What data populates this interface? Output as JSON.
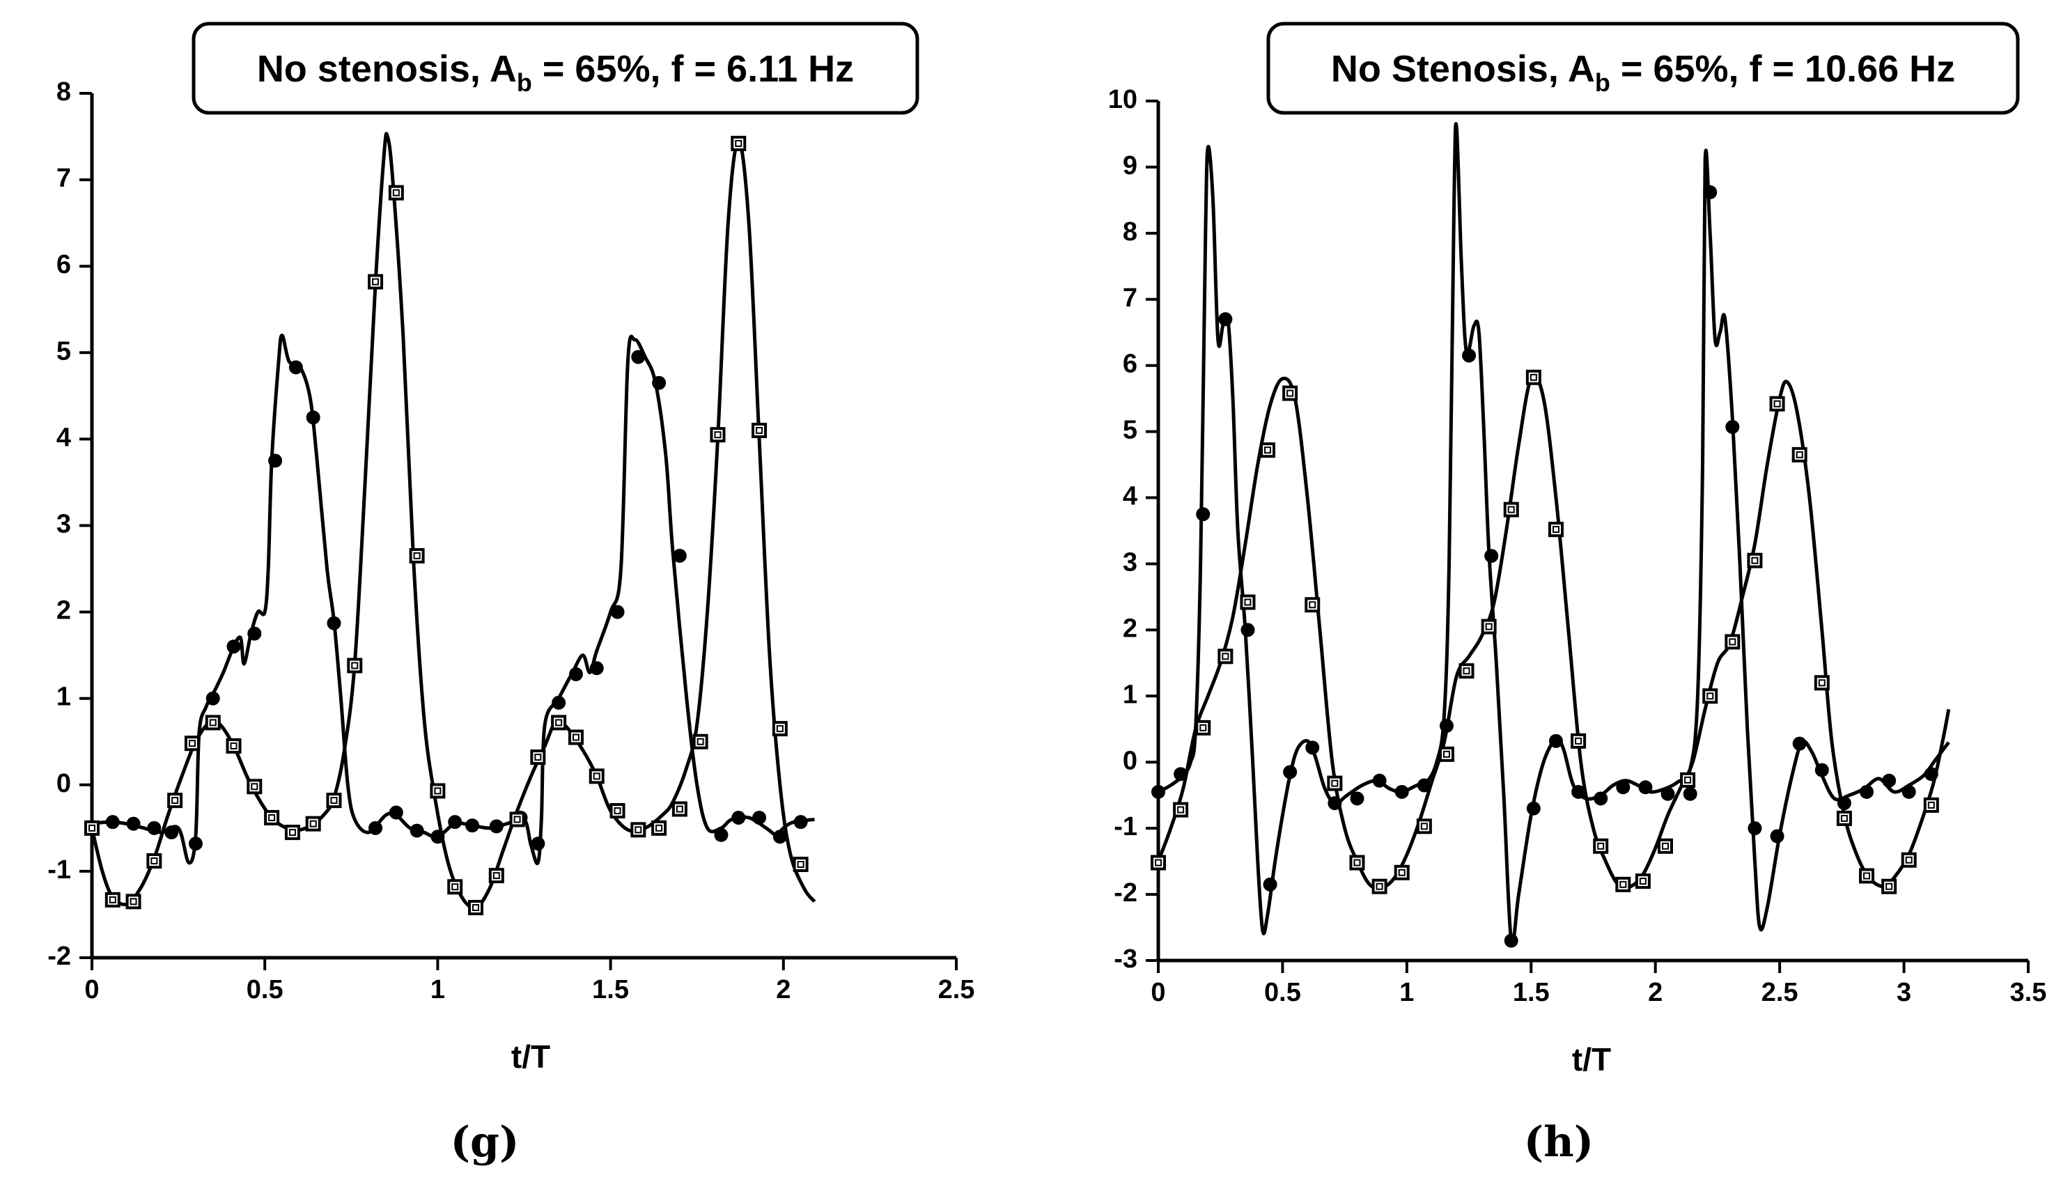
{
  "chart_data": [
    {
      "type": "line",
      "title": [
        "No stenosis, A",
        "b",
        " = 65%, f = 6.11 Hz"
      ],
      "xlabel": "t/T",
      "caption": "(g)",
      "xlim": [
        0,
        2.5
      ],
      "ylim": [
        -2,
        8
      ],
      "xticks": [
        0,
        0.5,
        1,
        1.5,
        2,
        2.5
      ],
      "yticks": [
        -2,
        -1,
        0,
        1,
        2,
        3,
        4,
        5,
        6,
        7,
        8
      ],
      "series": [
        {
          "color": "#000000",
          "marker": "circle",
          "x": [
            0,
            0.05,
            0.1,
            0.15,
            0.2,
            0.25,
            0.28,
            0.3,
            0.31,
            0.33,
            0.35,
            0.38,
            0.41,
            0.43,
            0.44,
            0.46,
            0.48,
            0.5,
            0.51,
            0.52,
            0.54,
            0.55,
            0.57,
            0.6,
            0.63,
            0.65,
            0.68,
            0.7,
            0.72,
            0.74,
            0.76,
            0.8,
            0.85,
            0.88,
            0.92,
            0.96,
            1.0,
            1.05,
            1.1,
            1.15,
            1.2,
            1.25,
            1.27,
            1.29,
            1.3,
            1.31,
            1.35,
            1.39,
            1.42,
            1.44,
            1.46,
            1.5,
            1.53,
            1.55,
            1.57,
            1.6,
            1.63,
            1.66,
            1.68,
            1.72,
            1.75,
            1.78,
            1.82,
            1.85,
            1.9,
            1.95,
            1.98,
            2.0,
            2.03,
            2.09
          ],
          "values": [
            -0.45,
            -0.43,
            -0.45,
            -0.5,
            -0.55,
            -0.5,
            -0.9,
            -0.6,
            0.6,
            0.9,
            1.05,
            1.3,
            1.6,
            1.7,
            1.4,
            1.75,
            2.0,
            2.0,
            2.5,
            3.75,
            4.9,
            5.2,
            4.9,
            4.85,
            4.5,
            3.8,
            2.5,
            1.9,
            1.0,
            0.0,
            -0.4,
            -0.55,
            -0.35,
            -0.35,
            -0.5,
            -0.55,
            -0.6,
            -0.45,
            -0.47,
            -0.5,
            -0.45,
            -0.4,
            -0.7,
            -0.9,
            -0.4,
            0.7,
            1.0,
            1.3,
            1.5,
            1.3,
            1.55,
            2.0,
            2.5,
            4.9,
            5.15,
            4.95,
            4.65,
            3.8,
            2.7,
            1.0,
            0.0,
            -0.5,
            -0.5,
            -0.4,
            -0.38,
            -0.5,
            -0.58,
            -0.5,
            -0.43,
            -0.4
          ],
          "markers": {
            "x": [
              0.06,
              0.12,
              0.18,
              0.23,
              0.3,
              0.35,
              0.41,
              0.47,
              0.53,
              0.59,
              0.64,
              0.7,
              0.82,
              0.88,
              0.94,
              1.0,
              1.05,
              1.1,
              1.17,
              1.24,
              1.29,
              1.35,
              1.4,
              1.46,
              1.52,
              1.58,
              1.64,
              1.7,
              1.82,
              1.87,
              1.93,
              1.99,
              2.05
            ],
            "values": [
              -0.43,
              -0.45,
              -0.5,
              -0.55,
              -0.68,
              1.0,
              1.6,
              1.75,
              3.75,
              4.83,
              4.25,
              1.87,
              -0.5,
              -0.32,
              -0.53,
              -0.6,
              -0.43,
              -0.47,
              -0.48,
              -0.38,
              -0.68,
              0.95,
              1.28,
              1.35,
              2.0,
              4.95,
              4.65,
              2.65,
              -0.58,
              -0.38,
              -0.38,
              -0.6,
              -0.43
            ]
          }
        },
        {
          "color": "#000000",
          "marker": "square",
          "x": [
            0,
            0.03,
            0.06,
            0.1,
            0.14,
            0.18,
            0.22,
            0.26,
            0.3,
            0.34,
            0.37,
            0.41,
            0.46,
            0.52,
            0.58,
            0.63,
            0.67,
            0.7,
            0.73,
            0.76,
            0.79,
            0.82,
            0.845,
            0.855,
            0.87,
            0.9,
            0.93,
            0.96,
            0.99,
            1.03,
            1.07,
            1.11,
            1.15,
            1.19,
            1.23,
            1.27,
            1.31,
            1.34,
            1.37,
            1.42,
            1.46,
            1.5,
            1.55,
            1.6,
            1.65,
            1.68,
            1.72,
            1.75,
            1.78,
            1.81,
            1.84,
            1.87,
            1.9,
            1.93,
            1.96,
            1.99,
            2.02,
            2.06,
            2.09
          ],
          "values": [
            -0.5,
            -1.0,
            -1.3,
            -1.38,
            -1.2,
            -0.85,
            -0.35,
            0.1,
            0.5,
            0.72,
            0.7,
            0.45,
            0.0,
            -0.38,
            -0.52,
            -0.48,
            -0.35,
            -0.15,
            0.4,
            1.4,
            3.5,
            5.8,
            7.3,
            7.5,
            7.0,
            5.2,
            2.6,
            0.8,
            -0.1,
            -0.9,
            -1.3,
            -1.42,
            -1.2,
            -0.75,
            -0.3,
            0.1,
            0.45,
            0.72,
            0.68,
            0.4,
            0.1,
            -0.3,
            -0.52,
            -0.5,
            -0.35,
            -0.2,
            0.2,
            0.7,
            2.0,
            4.0,
            6.5,
            7.45,
            6.5,
            4.0,
            1.5,
            0.0,
            -0.8,
            -1.2,
            -1.35
          ],
          "markers": {
            "x": [
              0,
              0.06,
              0.12,
              0.18,
              0.24,
              0.29,
              0.35,
              0.41,
              0.47,
              0.52,
              0.58,
              0.64,
              0.7,
              0.76,
              0.82,
              0.88,
              0.94,
              1.0,
              1.05,
              1.11,
              1.17,
              1.23,
              1.29,
              1.35,
              1.4,
              1.46,
              1.52,
              1.58,
              1.64,
              1.7,
              1.76,
              1.81,
              1.87,
              1.93,
              1.99,
              2.05
            ],
            "values": [
              -0.5,
              -1.33,
              -1.35,
              -0.88,
              -0.18,
              0.48,
              0.72,
              0.45,
              -0.02,
              -0.38,
              -0.55,
              -0.45,
              -0.18,
              1.38,
              5.82,
              6.85,
              2.65,
              -0.07,
              -1.18,
              -1.42,
              -1.05,
              -0.4,
              0.32,
              0.72,
              0.55,
              0.1,
              -0.3,
              -0.52,
              -0.5,
              -0.28,
              0.5,
              4.05,
              7.42,
              4.1,
              0.65,
              -0.92
            ]
          }
        }
      ]
    },
    {
      "type": "line",
      "title": [
        "No Stenosis, A",
        "b",
        " = 65%, f = 10.66 Hz"
      ],
      "xlabel": "t/T",
      "caption": "(h)",
      "xlim": [
        0,
        3.5
      ],
      "ylim": [
        -3,
        10
      ],
      "xticks": [
        0,
        0.5,
        1,
        1.5,
        2,
        2.5,
        3,
        3.5
      ],
      "yticks": [
        -3,
        -2,
        -1,
        0,
        1,
        2,
        3,
        4,
        5,
        6,
        7,
        8,
        9,
        10
      ],
      "series": [
        {
          "color": "#000000",
          "marker": "circle",
          "x": [
            0,
            0.05,
            0.1,
            0.13,
            0.15,
            0.17,
            0.19,
            0.2,
            0.22,
            0.24,
            0.26,
            0.28,
            0.3,
            0.32,
            0.35,
            0.38,
            0.4,
            0.42,
            0.44,
            0.47,
            0.5,
            0.53,
            0.56,
            0.6,
            0.63,
            0.67,
            0.71,
            0.76,
            0.82,
            0.88,
            0.93,
            0.98,
            1.04,
            1.08,
            1.12,
            1.15,
            1.17,
            1.19,
            1.2,
            1.22,
            1.24,
            1.27,
            1.29,
            1.31,
            1.33,
            1.36,
            1.39,
            1.42,
            1.45,
            1.5,
            1.55,
            1.6,
            1.63,
            1.67,
            1.72,
            1.78,
            1.83,
            1.88,
            1.93,
            1.98,
            2.04,
            2.09,
            2.14,
            2.17,
            2.19,
            2.2,
            2.22,
            2.24,
            2.26,
            2.28,
            2.31,
            2.34,
            2.37,
            2.4,
            2.42,
            2.45,
            2.5,
            2.55,
            2.59,
            2.63,
            2.67,
            2.72,
            2.78,
            2.84,
            2.9,
            2.96,
            3.02,
            3.08,
            3.12,
            3.16,
            3.18
          ],
          "values": [
            -0.45,
            -0.35,
            -0.2,
            0.0,
            0.5,
            3.0,
            8.0,
            9.3,
            8.5,
            6.4,
            6.6,
            6.7,
            5.5,
            3.5,
            2.0,
            0.0,
            -1.5,
            -2.55,
            -2.3,
            -1.5,
            -0.8,
            -0.2,
            0.2,
            0.32,
            0.1,
            -0.4,
            -0.62,
            -0.5,
            -0.35,
            -0.28,
            -0.4,
            -0.45,
            -0.35,
            -0.3,
            0.0,
            0.7,
            3.0,
            8.5,
            9.6,
            7.5,
            6.2,
            6.6,
            6.5,
            5.0,
            3.2,
            1.5,
            -0.5,
            -2.7,
            -2.0,
            -0.8,
            0.0,
            0.35,
            0.2,
            -0.35,
            -0.55,
            -0.5,
            -0.35,
            -0.28,
            -0.35,
            -0.45,
            -0.4,
            -0.3,
            -0.1,
            1.0,
            4.5,
            9.1,
            8.0,
            6.4,
            6.5,
            6.7,
            5.2,
            3.0,
            0.5,
            -1.5,
            -2.5,
            -2.2,
            -1.1,
            -0.2,
            0.3,
            0.15,
            -0.2,
            -0.55,
            -0.5,
            -0.4,
            -0.25,
            -0.45,
            -0.35,
            -0.2,
            0.0,
            0.2,
            0.3
          ],
          "markers": {
            "x": [
              0,
              0.09,
              0.18,
              0.27,
              0.36,
              0.45,
              0.53,
              0.62,
              0.71,
              0.8,
              0.89,
              0.98,
              1.07,
              1.16,
              1.25,
              1.34,
              1.42,
              1.51,
              1.6,
              1.69,
              1.78,
              1.87,
              1.96,
              2.05,
              2.14,
              2.22,
              2.31,
              2.4,
              2.49,
              2.58,
              2.67,
              2.76,
              2.85,
              2.94,
              3.02,
              3.11
            ],
            "values": [
              -0.45,
              -0.18,
              3.75,
              6.7,
              2.0,
              -1.85,
              -0.15,
              0.22,
              -0.62,
              -0.55,
              -0.28,
              -0.45,
              -0.35,
              0.55,
              6.15,
              3.12,
              -2.7,
              -0.7,
              0.32,
              -0.45,
              -0.55,
              -0.38,
              -0.38,
              -0.48,
              -0.48,
              8.62,
              5.07,
              -1.0,
              -1.12,
              0.28,
              -0.12,
              -0.62,
              -0.45,
              -0.28,
              -0.45,
              -0.18
            ]
          }
        },
        {
          "color": "#000000",
          "marker": "square",
          "x": [
            0,
            0.05,
            0.1,
            0.15,
            0.2,
            0.25,
            0.3,
            0.35,
            0.4,
            0.45,
            0.5,
            0.55,
            0.6,
            0.65,
            0.7,
            0.75,
            0.8,
            0.85,
            0.9,
            0.95,
            1.0,
            1.05,
            1.1,
            1.15,
            1.2,
            1.25,
            1.3,
            1.35,
            1.4,
            1.45,
            1.5,
            1.55,
            1.6,
            1.65,
            1.7,
            1.75,
            1.8,
            1.85,
            1.9,
            1.95,
            2.0,
            2.05,
            2.1,
            2.15,
            2.2,
            2.25,
            2.3,
            2.35,
            2.4,
            2.45,
            2.5,
            2.53,
            2.57,
            2.62,
            2.67,
            2.71,
            2.76,
            2.81,
            2.86,
            2.92,
            2.97,
            3.02,
            3.07,
            3.12,
            3.16,
            3.18
          ],
          "values": [
            -1.5,
            -1.0,
            -0.4,
            0.5,
            1.0,
            1.5,
            2.2,
            3.3,
            4.5,
            5.4,
            5.8,
            5.5,
            4.0,
            2.0,
            0.0,
            -1.0,
            -1.5,
            -1.85,
            -1.9,
            -1.75,
            -1.4,
            -0.9,
            -0.3,
            0.3,
            1.3,
            1.6,
            1.9,
            2.4,
            3.5,
            4.8,
            5.8,
            5.5,
            4.0,
            2.0,
            0.0,
            -1.0,
            -1.5,
            -1.85,
            -1.88,
            -1.7,
            -1.3,
            -0.8,
            -0.4,
            0.0,
            0.8,
            1.5,
            1.8,
            2.5,
            3.3,
            4.5,
            5.5,
            5.75,
            5.3,
            4.0,
            2.0,
            0.3,
            -0.8,
            -1.4,
            -1.75,
            -1.88,
            -1.7,
            -1.4,
            -0.9,
            -0.3,
            0.4,
            0.8
          ],
          "markers": {
            "x": [
              0,
              0.09,
              0.18,
              0.27,
              0.36,
              0.44,
              0.53,
              0.62,
              0.71,
              0.8,
              0.89,
              0.98,
              1.07,
              1.16,
              1.24,
              1.33,
              1.42,
              1.51,
              1.6,
              1.69,
              1.78,
              1.87,
              1.95,
              2.04,
              2.13,
              2.22,
              2.31,
              2.4,
              2.49,
              2.58,
              2.67,
              2.76,
              2.85,
              2.94,
              3.02,
              3.11
            ],
            "values": [
              -1.52,
              -0.72,
              0.52,
              1.6,
              2.42,
              4.72,
              5.58,
              2.38,
              -0.32,
              -1.52,
              -1.88,
              -1.67,
              -0.97,
              0.12,
              1.38,
              2.05,
              3.82,
              5.82,
              3.52,
              0.32,
              -1.27,
              -1.85,
              -1.8,
              -1.27,
              -0.27,
              1.0,
              1.82,
              3.05,
              5.42,
              4.65,
              1.2,
              -0.85,
              -1.72,
              -1.88,
              -1.48,
              -0.65
            ]
          }
        }
      ]
    }
  ]
}
